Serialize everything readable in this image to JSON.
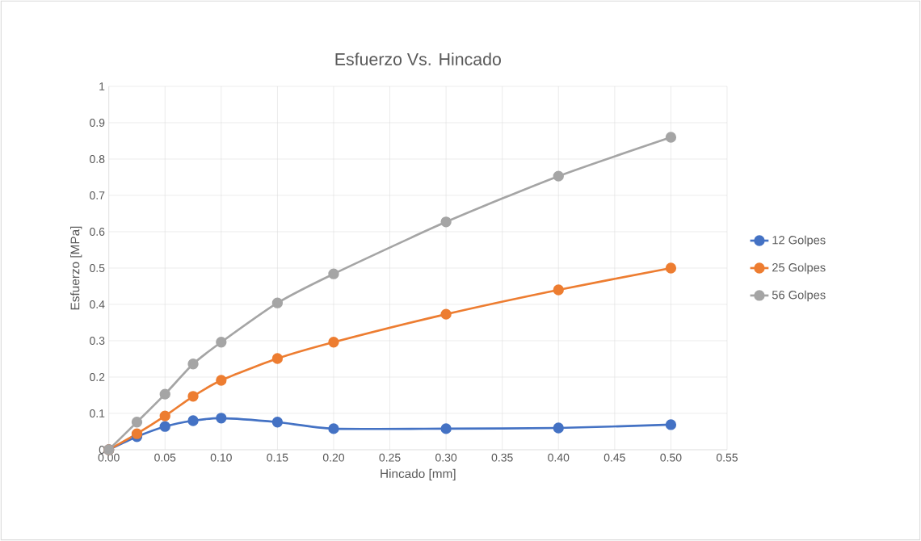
{
  "chart_data": {
    "type": "line",
    "title": "Esfuerzo Vs. Hincado",
    "xlabel": "Hincado [mm]",
    "ylabel": "Esfuerzo [MPa]",
    "x": [
      0,
      0.025,
      0.05,
      0.075,
      0.1,
      0.15,
      0.2,
      0.3,
      0.4,
      0.5
    ],
    "series": [
      {
        "name": "12 Golpes",
        "color": "#4472c4",
        "values": [
          0,
          0.036,
          0.064,
          0.08,
          0.087,
          0.076,
          0.058,
          0.058,
          0.06,
          0.069
        ]
      },
      {
        "name": "25 Golpes",
        "color": "#ed7d31",
        "values": [
          0,
          0.044,
          0.093,
          0.147,
          0.191,
          0.251,
          0.296,
          0.373,
          0.44,
          0.5
        ]
      },
      {
        "name": "56 Golpes",
        "color": "#a5a5a5",
        "values": [
          0,
          0.076,
          0.153,
          0.236,
          0.296,
          0.404,
          0.484,
          0.627,
          0.753,
          0.86
        ]
      }
    ],
    "xlim": [
      0,
      0.55
    ],
    "xticks": [
      {
        "value": 0,
        "label": "0.00"
      },
      {
        "value": 0.05,
        "label": "0.05"
      },
      {
        "value": 0.1,
        "label": "0.10"
      },
      {
        "value": 0.15,
        "label": "0.15"
      },
      {
        "value": 0.2,
        "label": "0.20"
      },
      {
        "value": 0.25,
        "label": "0.25"
      },
      {
        "value": 0.3,
        "label": "0.30"
      },
      {
        "value": 0.35,
        "label": "0.35"
      },
      {
        "value": 0.4,
        "label": "0.40"
      },
      {
        "value": 0.45,
        "label": "0.45"
      },
      {
        "value": 0.5,
        "label": "0.50"
      },
      {
        "value": 0.55,
        "label": "0.55"
      }
    ],
    "ylim": [
      0,
      1
    ],
    "yticks": [
      0,
      0.1,
      0.2,
      0.3,
      0.4,
      0.5,
      0.6,
      0.7,
      0.8,
      0.9,
      1
    ],
    "grid": true,
    "legend": "right",
    "marker": "circle",
    "line_style": "solid"
  }
}
